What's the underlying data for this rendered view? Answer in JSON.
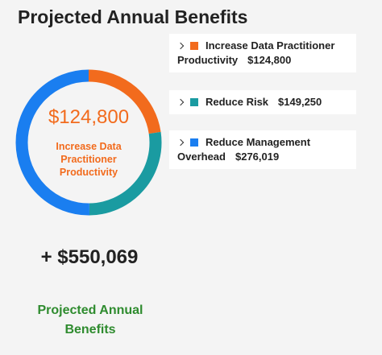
{
  "title": "Projected Annual Benefits",
  "chart_data": {
    "type": "donut",
    "categories": [
      "Increase Data Practitioner Productivity",
      "Reduce Risk",
      "Reduce Management Overhead"
    ],
    "values": [
      124800,
      149250,
      276019
    ],
    "value_labels": [
      "$124,800",
      "$149,250",
      "$276,019"
    ],
    "colors": [
      "#f26b1d",
      "#1a9ba1",
      "#1a7ef0"
    ]
  },
  "total": "+ $550,069",
  "footer": "Projected Annual Benefits"
}
